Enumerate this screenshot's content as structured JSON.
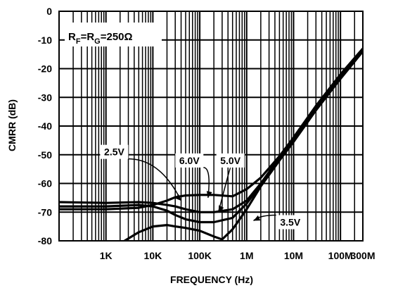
{
  "chart_data": {
    "type": "line",
    "title": "",
    "xlabel": "FREQUENCY (Hz)",
    "ylabel": "CMRR (dB)",
    "xscale": "log",
    "xlim": [
      100,
      300000000
    ],
    "ylim": [
      -80,
      0
    ],
    "grid": true,
    "x_ticks": [
      {
        "value": 1000,
        "label": "1K"
      },
      {
        "value": 10000,
        "label": "10K"
      },
      {
        "value": 100000,
        "label": "100K"
      },
      {
        "value": 1000000,
        "label": "1M"
      },
      {
        "value": 10000000,
        "label": "10M"
      },
      {
        "value": 100000000,
        "label": "100M"
      },
      {
        "value": 300000000,
        "label": "300M"
      }
    ],
    "y_ticks": [
      0,
      -10,
      -20,
      -30,
      -40,
      -50,
      -60,
      -70,
      -80
    ],
    "condition_label": {
      "parts": [
        "R",
        "F",
        "=R",
        "G",
        "=250Ω"
      ]
    },
    "series": [
      {
        "name": "2.5V",
        "x": [
          100,
          1000,
          5000,
          10000,
          20000,
          30000,
          50000,
          100000,
          200000,
          500000,
          1000000,
          2000000,
          5000000,
          10000000,
          30000000,
          100000000,
          300000000
        ],
        "y": [
          -66.5,
          -66.8,
          -66.5,
          -66.8,
          -67.5,
          -68,
          -69,
          -70,
          -70,
          -69,
          -66,
          -60,
          -51,
          -44,
          -33,
          -22,
          -13
        ]
      },
      {
        "name": "6.0V",
        "x": [
          100,
          1000,
          5000,
          10000,
          20000,
          30000,
          50000,
          100000,
          200000,
          500000,
          1000000,
          2000000,
          5000000,
          10000000,
          30000000,
          100000000,
          300000000
        ],
        "y": [
          -69,
          -69,
          -68.5,
          -67.5,
          -66,
          -64.8,
          -64.2,
          -64,
          -64,
          -64.5,
          -62,
          -58,
          -50.5,
          -44,
          -33,
          -22,
          -13
        ]
      },
      {
        "name": "5.0V",
        "x": [
          100,
          1000,
          5000,
          10000,
          20000,
          30000,
          50000,
          100000,
          200000,
          500000,
          1000000,
          2000000,
          5000000,
          10000000,
          30000000,
          100000000,
          300000000
        ],
        "y": [
          -68,
          -68,
          -67.5,
          -68,
          -69.5,
          -71,
          -72.5,
          -73.5,
          -73.5,
          -72,
          -67,
          -60.5,
          -51.5,
          -45,
          -34,
          -23,
          -14
        ]
      },
      {
        "name": "3.5V",
        "x": [
          2500,
          5000,
          10000,
          20000,
          30000,
          50000,
          100000,
          200000,
          300000,
          500000,
          1000000,
          2000000,
          5000000,
          10000000,
          30000000,
          100000000,
          300000000
        ],
        "y": [
          -80,
          -77,
          -75,
          -74.5,
          -75,
          -75.5,
          -76.5,
          -78.5,
          -79.5,
          -76,
          -69,
          -61,
          -52,
          -45.5,
          -34.5,
          -23.5,
          -14
        ]
      }
    ],
    "annotations": [
      {
        "series": "2.5V",
        "text": "2.5V",
        "label_x": 1500,
        "label_y": -49,
        "target_x": 40000,
        "target_y": -66
      },
      {
        "series": "6.0V",
        "text": "6.0V",
        "label_x": 60000,
        "label_y": -52,
        "target_x": 150000,
        "target_y": -65
      },
      {
        "series": "5.0V",
        "text": "5.0V",
        "label_x": 450000,
        "label_y": -52,
        "target_x": 250000,
        "target_y": -70
      },
      {
        "series": "3.5V",
        "text": "3.5V",
        "label_x": 8500000,
        "label_y": -73.5,
        "target_x": 1400000,
        "target_y": -73
      }
    ]
  }
}
